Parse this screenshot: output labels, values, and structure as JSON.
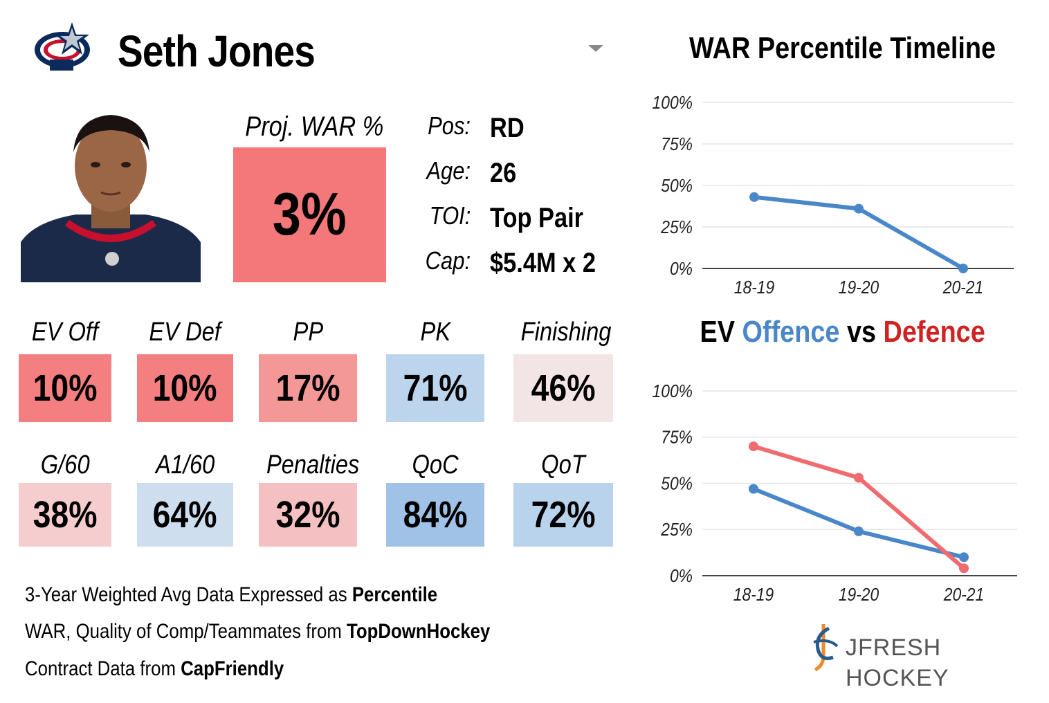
{
  "player": {
    "name": "Seth Jones",
    "team_logo_icon": "blue-jackets-logo-icon",
    "proj_war_label": "Proj. WAR %",
    "proj_war_value": "3%",
    "proj_war_color": "#f4777a",
    "info": [
      {
        "key": "Pos:",
        "value": "RD"
      },
      {
        "key": "Age:",
        "value": "26"
      },
      {
        "key": "TOI:",
        "value": "Top Pair"
      },
      {
        "key": "Cap:",
        "value": "$5.4M x 2"
      }
    ]
  },
  "stats": {
    "row1": [
      {
        "label": "EV Off",
        "value": "10%",
        "color": "#f47f80"
      },
      {
        "label": "EV Def",
        "value": "10%",
        "color": "#f47f80"
      },
      {
        "label": "PP",
        "value": "17%",
        "color": "#f39797"
      },
      {
        "label": "PK",
        "value": "71%",
        "color": "#bcd4ec"
      },
      {
        "label": "Finishing",
        "value": "46%",
        "color": "#f3e5e5"
      }
    ],
    "row2": [
      {
        "label": "G/60",
        "value": "38%",
        "color": "#f5cdce"
      },
      {
        "label": "A1/60",
        "value": "64%",
        "color": "#cedeef"
      },
      {
        "label": "Penalties",
        "value": "32%",
        "color": "#f4c0c1"
      },
      {
        "label": "QoC",
        "value": "84%",
        "color": "#9fc2e6"
      },
      {
        "label": "QoT",
        "value": "72%",
        "color": "#bad3ec"
      }
    ]
  },
  "notes": [
    {
      "text": "3-Year Weighted Avg Data Expressed as ",
      "bold": "Percentile"
    },
    {
      "text": "WAR, Quality of Comp/Teammates from ",
      "bold": "TopDownHockey"
    },
    {
      "text": "Contract Data from ",
      "bold": "CapFriendly"
    }
  ],
  "brand": {
    "name": "JFRESH HOCKEY",
    "icon": "jfresh-logo-icon"
  },
  "colors": {
    "offence": "#4a87c8",
    "defence": "#d12222",
    "defence_line": "#f06b6e",
    "war_line": "#4a87c8"
  },
  "chart_data": [
    {
      "type": "line",
      "title": "WAR Percentile Timeline",
      "categories": [
        "18-19",
        "19-20",
        "20-21"
      ],
      "series": [
        {
          "name": "WAR Percentile",
          "values": [
            43,
            36,
            0
          ]
        }
      ],
      "ylim": [
        0,
        100
      ],
      "yticks": [
        "0%",
        "25%",
        "50%",
        "75%",
        "100%"
      ],
      "xlabel": "",
      "ylabel": "",
      "grid": true
    },
    {
      "type": "line",
      "title": "EV Offence vs Defence",
      "title_parts": [
        "EV ",
        "Offence",
        " vs ",
        "Defence"
      ],
      "categories": [
        "18-19",
        "19-20",
        "20-21"
      ],
      "series": [
        {
          "name": "Offence",
          "values": [
            47,
            24,
            10
          ]
        },
        {
          "name": "Defence",
          "values": [
            70,
            53,
            4
          ]
        }
      ],
      "ylim": [
        0,
        100
      ],
      "yticks": [
        "0%",
        "25%",
        "50%",
        "75%",
        "100%"
      ],
      "xlabel": "",
      "ylabel": "",
      "grid": true
    }
  ]
}
